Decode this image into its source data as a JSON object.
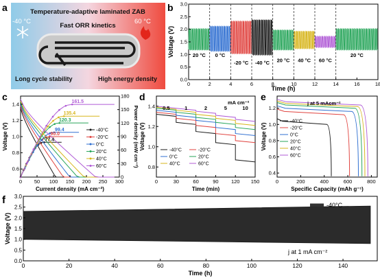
{
  "panels": {
    "a": {
      "letter": "a",
      "title": "Temperature-adaptive laminated ZAB",
      "cold_temp": "-40 °C",
      "hot_temp": "60 °C",
      "kinetics": "Fast ORR kinetics",
      "left_caption": "Long cycle stability",
      "right_caption": "High energy density",
      "colors": {
        "cold": "#9fd3ec",
        "hot": "#ef4b3f",
        "mid": "#f4c1c4"
      }
    },
    "b": {
      "letter": "b",
      "ylabel": "Voltage (V)",
      "xlabel": "Time (h)",
      "xticks": [
        "0",
        "2",
        "4",
        "6",
        "8",
        "10",
        "12",
        "14",
        "16",
        "18"
      ],
      "yticks": [
        "0.0",
        "0.5",
        "1.0",
        "1.5",
        "2.0",
        "2.5",
        "3.0"
      ],
      "segment_labels": [
        "20 °C",
        "0 °C",
        "-20 °C",
        "-40 °C",
        "20 °C",
        "40 °C",
        "60 °C",
        "20 °C"
      ]
    },
    "c": {
      "letter": "c",
      "ylabel_left": "Voltage (V)",
      "ylabel_right": "Power density (mW cm⁻²)",
      "xlabel": "Current density (mA cm⁻²)",
      "xticks": [
        "0",
        "50",
        "100",
        "150",
        "200",
        "250",
        "300"
      ],
      "yticks_left": [
        "0.6",
        "0.8",
        "1.0",
        "1.2",
        "1.4"
      ],
      "yticks_right": [
        "0",
        "30",
        "60",
        "90",
        "120",
        "150",
        "180"
      ],
      "peak_labels": [
        "161.5",
        "135.4",
        "120.3",
        "99.4",
        "90.0",
        "77.4"
      ],
      "legend": [
        "-40°C",
        "-20°C",
        "0°C",
        "20°C",
        "40°C",
        "60°C"
      ]
    },
    "d": {
      "letter": "d",
      "ylabel": "Voltage (V)",
      "xlabel": "Time (min)",
      "xticks": [
        "0",
        "30",
        "60",
        "90",
        "120",
        "150"
      ],
      "yticks": [
        "0.8",
        "1.0",
        "1.2",
        "1.4"
      ],
      "rate_labels": [
        "0.5",
        "1",
        "2",
        "5",
        "10"
      ],
      "rate_unit": "mA cm⁻²",
      "legend": [
        "-40°C",
        "-20°C",
        "0°C",
        "20°C",
        "40°C",
        "60°C"
      ]
    },
    "e": {
      "letter": "e",
      "ylabel": "Voltage (V)",
      "xlabel": "Specific Capacity (mAh g⁻¹)",
      "xticks": [
        "0",
        "200",
        "400",
        "600",
        "800"
      ],
      "yticks": [
        "0.4",
        "0.6",
        "0.8",
        "1.0",
        "1.2"
      ],
      "note": "j at 5 mAcm⁻²",
      "legend": [
        "-40°C",
        "-20°C",
        "0°C",
        "20°C",
        "40°C",
        "60°C"
      ]
    },
    "f": {
      "letter": "f",
      "ylabel": "Voltage (V)",
      "xlabel": "Time (h)",
      "xticks": [
        "0",
        "20",
        "40",
        "60",
        "80",
        "100",
        "120",
        "140"
      ],
      "yticks": [
        "0.0",
        "0.5",
        "1.0",
        "1.5",
        "2.0",
        "2.5",
        "3.0"
      ],
      "legend": "-40°C",
      "note": "j at 1 mA cm⁻²"
    }
  },
  "series_colors": {
    "-40": "#1a1a1a",
    "-20": "#e0433f",
    "0": "#2f6fd1",
    "20": "#27a55a",
    "40": "#d7b51b",
    "60": "#b05bd6"
  },
  "chart_data": [
    {
      "panel": "b",
      "type": "line",
      "xlabel": "Time (h)",
      "ylabel": "Voltage (V)",
      "xlim": [
        0,
        18
      ],
      "ylim": [
        0,
        3
      ],
      "series": [
        {
          "name": "20 °C",
          "x": [
            0,
            2
          ],
          "charge": 2.0,
          "discharge": 1.2
        },
        {
          "name": "0 °C",
          "x": [
            2,
            4
          ],
          "charge": 2.1,
          "discharge": 1.15
        },
        {
          "name": "-20 °C",
          "x": [
            4,
            6
          ],
          "charge": 2.3,
          "discharge": 1.05
        },
        {
          "name": "-40 °C",
          "x": [
            6,
            8
          ],
          "charge": 2.35,
          "discharge": 1.0
        },
        {
          "name": "20 °C",
          "x": [
            8,
            10
          ],
          "charge": 1.95,
          "discharge": 1.2
        },
        {
          "name": "40 °C",
          "x": [
            10,
            12
          ],
          "charge": 1.9,
          "discharge": 1.25
        },
        {
          "name": "60 °C",
          "x": [
            12,
            14
          ],
          "charge": 1.7,
          "discharge": 1.3
        },
        {
          "name": "20 °C",
          "x": [
            14,
            18
          ],
          "charge": 2.0,
          "discharge": 1.2
        }
      ]
    },
    {
      "panel": "c",
      "type": "line",
      "xlabel": "Current density (mA cm⁻²)",
      "ylabel": "Voltage (V)",
      "ylabel_right": "Power density (mW cm⁻²)",
      "xlim": [
        0,
        300
      ],
      "ylim": [
        0.5,
        1.5
      ],
      "ylim_right": [
        0,
        180
      ],
      "series": [
        {
          "name": "-40°C",
          "jmax": 130,
          "ocv": 1.35,
          "peak_power": 77.4
        },
        {
          "name": "-20°C",
          "jmax": 160,
          "ocv": 1.38,
          "peak_power": 90.0
        },
        {
          "name": "0°C",
          "jmax": 185,
          "ocv": 1.4,
          "peak_power": 99.4
        },
        {
          "name": "20°C",
          "jmax": 215,
          "ocv": 1.42,
          "peak_power": 120.3
        },
        {
          "name": "40°C",
          "jmax": 240,
          "ocv": 1.44,
          "peak_power": 135.4
        },
        {
          "name": "60°C",
          "jmax": 285,
          "ocv": 1.46,
          "peak_power": 161.5
        }
      ]
    },
    {
      "panel": "d",
      "type": "line",
      "xlabel": "Time (min)",
      "ylabel": "Voltage (V)",
      "xlim": [
        0,
        150
      ],
      "ylim": [
        0.7,
        1.5
      ],
      "rate_steps": [
        "0.5",
        "1",
        "2",
        "5",
        "10"
      ],
      "series": [
        {
          "name": "-40°C",
          "values": [
            1.31,
            1.23,
            1.14,
            1.03,
            0.86
          ]
        },
        {
          "name": "-20°C",
          "values": [
            1.33,
            1.27,
            1.2,
            1.12,
            1.05
          ]
        },
        {
          "name": "0°C",
          "values": [
            1.35,
            1.3,
            1.25,
            1.18,
            1.12
          ]
        },
        {
          "name": "20°C",
          "values": [
            1.37,
            1.33,
            1.28,
            1.23,
            1.18
          ]
        },
        {
          "name": "40°C",
          "values": [
            1.38,
            1.35,
            1.31,
            1.27,
            1.22
          ]
        },
        {
          "name": "60°C",
          "values": [
            1.39,
            1.37,
            1.34,
            1.3,
            1.26
          ]
        }
      ]
    },
    {
      "panel": "e",
      "type": "line",
      "xlabel": "Specific Capacity (mAh g⁻¹)",
      "ylabel": "Voltage (V)",
      "xlim": [
        0,
        850
      ],
      "ylim": [
        0.35,
        1.35
      ],
      "series": [
        {
          "name": "-40°C",
          "plateau": 1.04,
          "capacity": 460
        },
        {
          "name": "-20°C",
          "plateau": 1.16,
          "capacity": 615
        },
        {
          "name": "0°C",
          "plateau": 1.2,
          "capacity": 690
        },
        {
          "name": "20°C",
          "plateau": 1.24,
          "capacity": 720
        },
        {
          "name": "40°C",
          "plateau": 1.26,
          "capacity": 745
        },
        {
          "name": "60°C",
          "plateau": 1.28,
          "capacity": 770
        }
      ]
    },
    {
      "panel": "f",
      "type": "area",
      "xlabel": "Time (h)",
      "ylabel": "Voltage (V)",
      "xlim": [
        0,
        155
      ],
      "ylim": [
        0,
        3
      ],
      "series": [
        {
          "name": "-40°C",
          "x": [
            0,
            152
          ],
          "upper": [
            2.3,
            2.55
          ],
          "lower": [
            1.0,
            0.8
          ]
        }
      ]
    }
  ]
}
